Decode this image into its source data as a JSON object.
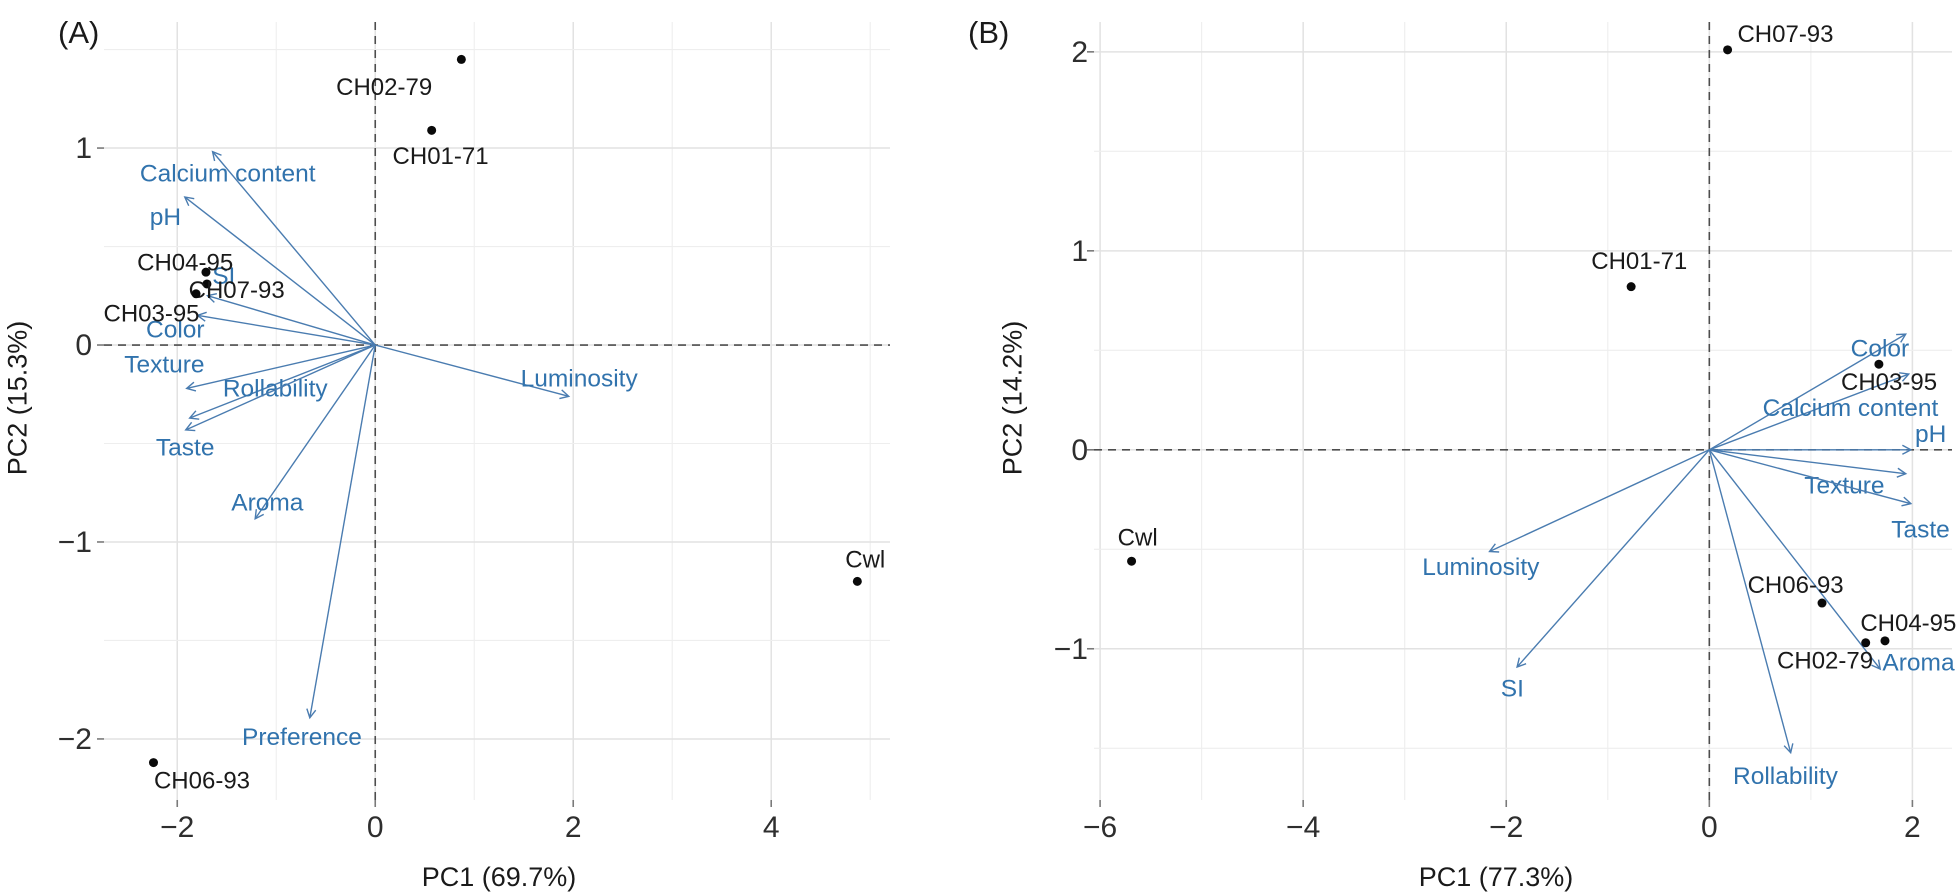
{
  "figure": {
    "background": "#ffffff"
  },
  "colors": {
    "arrow_line": "#4a7cb0",
    "arrow_label": "#3173ad",
    "point_dot": "#0a0a0a",
    "point_label": "#1a1a1a",
    "grid_major": "#e2e2e2",
    "grid_minor": "#eeeeee",
    "zero_line": "#4d4d4d",
    "tick_label": "#2e2e2e",
    "axis_title": "#1a1a1a"
  },
  "chart_data": [
    {
      "type": "scatter",
      "subtype": "pca-biplot",
      "panel_letter": "(A)",
      "xlabel": "PC1 (69.7%)",
      "ylabel": "PC2 (15.3%)",
      "xlim": [
        -2.74,
        5.2
      ],
      "ylim": [
        -2.31,
        1.64
      ],
      "x_ticks": [
        -2,
        0,
        2,
        4
      ],
      "y_ticks": [
        -2,
        -1,
        0,
        1
      ],
      "grid": {
        "x_step": 1,
        "y_step": 0.5,
        "zero_lines_dashed": true
      },
      "legend": "none",
      "points": [
        {
          "label": "CH02-79",
          "x": 0.87,
          "y": 1.45,
          "lx": 0.09,
          "ly": 1.31
        },
        {
          "label": "CH01-71",
          "x": 0.57,
          "y": 1.09,
          "lx": 0.66,
          "ly": 0.96
        },
        {
          "label": "CH04-95",
          "x": -1.71,
          "y": 0.37,
          "lx": -1.92,
          "ly": 0.42
        },
        {
          "label": "CH07-93",
          "x": -1.7,
          "y": 0.31,
          "lx": -1.4,
          "ly": 0.28
        },
        {
          "label": "CH03-95",
          "x": -1.81,
          "y": 0.26,
          "lx": -2.26,
          "ly": 0.16
        },
        {
          "label": "CH06-93",
          "x": -2.24,
          "y": -2.12,
          "lx": -1.75,
          "ly": -2.21
        },
        {
          "label": "Cwl",
          "x": 4.87,
          "y": -1.2,
          "lx": 4.95,
          "ly": -1.09
        }
      ],
      "arrows": [
        {
          "label": "Calcium content",
          "x": -1.64,
          "y": 0.98,
          "lx": -1.49,
          "ly": 0.87
        },
        {
          "label": "pH",
          "x": -1.92,
          "y": 0.75,
          "lx": -2.12,
          "ly": 0.65
        },
        {
          "label": "SI",
          "x": -1.69,
          "y": 0.25,
          "lx": -1.53,
          "ly": 0.35
        },
        {
          "label": "Color",
          "x": -1.79,
          "y": 0.15,
          "lx": -2.02,
          "ly": 0.08
        },
        {
          "label": "Texture",
          "x": -1.9,
          "y": -0.22,
          "lx": -2.13,
          "ly": -0.1
        },
        {
          "label": "Rollability",
          "x": -1.87,
          "y": -0.37,
          "lx": -1.01,
          "ly": -0.22
        },
        {
          "label": "Taste",
          "x": -1.91,
          "y": -0.43,
          "lx": -1.92,
          "ly": -0.52
        },
        {
          "label": "Aroma",
          "x": -1.21,
          "y": -0.88,
          "lx": -1.09,
          "ly": -0.8
        },
        {
          "label": "Preference",
          "x": -0.66,
          "y": -1.89,
          "lx": -0.74,
          "ly": -1.99
        },
        {
          "label": "Luminosity",
          "x": 1.95,
          "y": -0.26,
          "lx": 2.06,
          "ly": -0.17
        }
      ]
    },
    {
      "type": "scatter",
      "subtype": "pca-biplot",
      "panel_letter": "(B)",
      "xlabel": "PC1 (77.3%)",
      "ylabel": "PC2 (14.2%)",
      "xlim": [
        -6.06,
        2.39
      ],
      "ylim": [
        -1.76,
        2.15
      ],
      "x_ticks": [
        -6,
        -4,
        -2,
        0,
        2
      ],
      "y_ticks": [
        -1,
        0,
        1,
        2
      ],
      "grid": {
        "x_step": 1,
        "y_step": 0.5,
        "zero_lines_dashed": true
      },
      "legend": "none",
      "points": [
        {
          "label": "CH07-93",
          "x": 0.18,
          "y": 2.01,
          "lx": 0.75,
          "ly": 2.09
        },
        {
          "label": "CH01-71",
          "x": -0.77,
          "y": 0.82,
          "lx": -0.69,
          "ly": 0.95
        },
        {
          "label": "Cwl",
          "x": -5.69,
          "y": -0.56,
          "lx": -5.63,
          "ly": -0.44
        },
        {
          "label": "CH03-95",
          "x": 1.67,
          "y": 0.43,
          "lx": 1.77,
          "ly": 0.34
        },
        {
          "label": "CH06-93",
          "x": 1.11,
          "y": -0.77,
          "lx": 0.85,
          "ly": -0.68
        },
        {
          "label": "CH04-95",
          "x": 1.73,
          "y": -0.96,
          "lx": 1.96,
          "ly": -0.87
        },
        {
          "label": "CH02-79",
          "x": 1.54,
          "y": -0.97,
          "lx": 1.14,
          "ly": -1.06
        }
      ],
      "arrows": [
        {
          "label": "Color",
          "x": 1.93,
          "y": 0.58,
          "lx": 1.68,
          "ly": 0.51
        },
        {
          "label": "Calcium content",
          "x": 1.96,
          "y": 0.38,
          "lx": 1.39,
          "ly": 0.21
        },
        {
          "label": "pH",
          "x": 1.98,
          "y": 0.0,
          "lx": 2.18,
          "ly": 0.08
        },
        {
          "label": "Texture",
          "x": 1.93,
          "y": -0.12,
          "lx": 1.33,
          "ly": -0.18
        },
        {
          "label": "Taste",
          "x": 1.98,
          "y": -0.27,
          "lx": 2.08,
          "ly": -0.4
        },
        {
          "label": "Aroma",
          "x": 1.68,
          "y": -1.1,
          "lx": 2.06,
          "ly": -1.07
        },
        {
          "label": "Rollability",
          "x": 0.8,
          "y": -1.52,
          "lx": 0.75,
          "ly": -1.64
        },
        {
          "label": "Luminosity",
          "x": -2.16,
          "y": -0.51,
          "lx": -2.25,
          "ly": -0.59
        },
        {
          "label": "SI",
          "x": -1.89,
          "y": -1.09,
          "lx": -1.94,
          "ly": -1.2
        }
      ]
    }
  ]
}
